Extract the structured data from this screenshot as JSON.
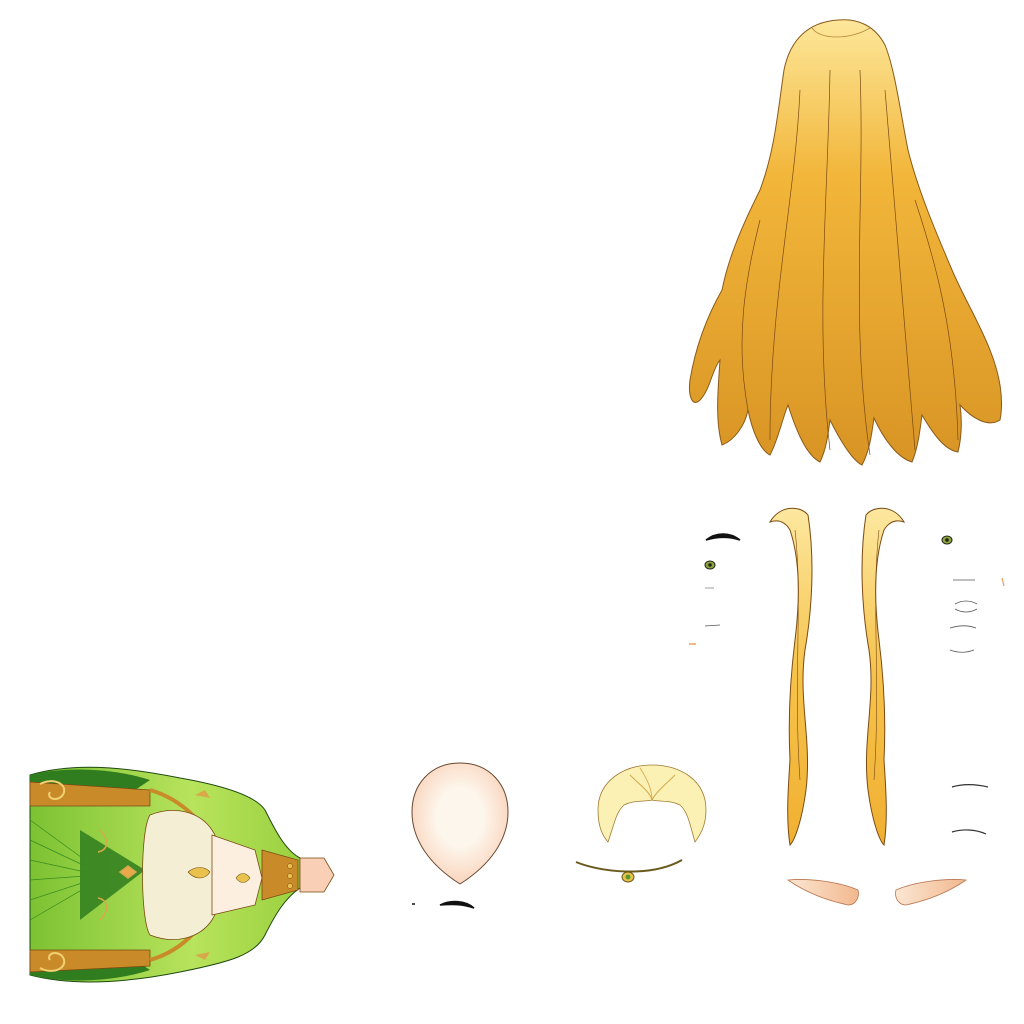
{
  "sheet": {
    "background": "#ffffff",
    "parts": [
      "back-hair",
      "side-hair-left",
      "side-hair-right",
      "left-eyebrow",
      "left-eye",
      "right-eye",
      "mouth-shapes",
      "face-base",
      "bangs",
      "circlet",
      "elf-ear-left",
      "elf-ear-right",
      "body-dress"
    ]
  },
  "colors": {
    "hair_light": "#fde79a",
    "hair_mid": "#f2b63a",
    "hair_dark": "#d89424",
    "bangs": "#fbf1b4",
    "skin": "#fdf3e6",
    "skin_blush": "#f9cfb5",
    "ear": "#f8d2b2",
    "dress_light": "#b8e35c",
    "dress_mid": "#7cc233",
    "dress_dark": "#2f7d1f",
    "gold": "#c98a2a",
    "gold_light": "#e9c24d",
    "lining": "#f4eed4",
    "eye_green": "#8aa637",
    "outline": "#3a2410"
  }
}
